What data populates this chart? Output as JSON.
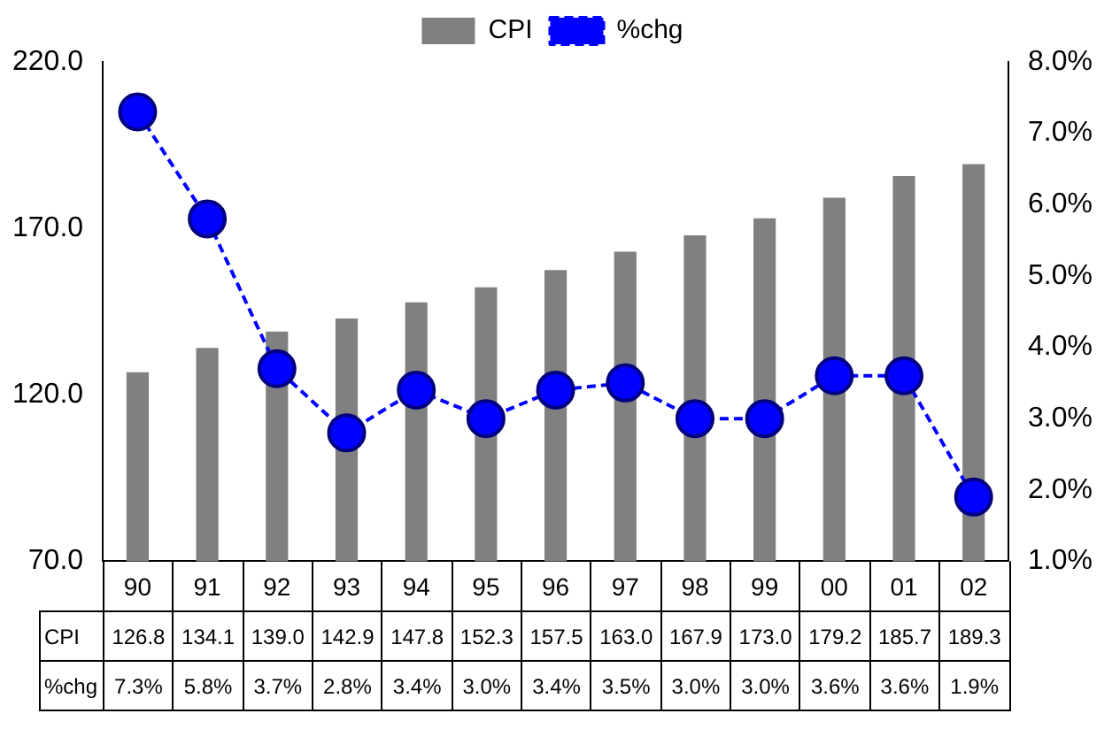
{
  "chart_data": {
    "type": "bar",
    "categories": [
      "90",
      "91",
      "92",
      "93",
      "94",
      "95",
      "96",
      "97",
      "98",
      "99",
      "00",
      "01",
      "02"
    ],
    "series": [
      {
        "name": "CPI",
        "color": "#808080",
        "values": [
          126.8,
          134.1,
          139.0,
          142.9,
          147.8,
          152.3,
          157.5,
          163.0,
          167.9,
          173.0,
          179.2,
          185.7,
          189.3
        ],
        "value_labels": [
          "126.8",
          "134.1",
          "139.0",
          "142.9",
          "147.8",
          "152.3",
          "157.5",
          "163.0",
          "167.9",
          "173.0",
          "179.2",
          "185.7",
          "189.3"
        ]
      },
      {
        "name": "%chg",
        "type": "line",
        "axis": "y2",
        "color": "#0000ff",
        "values": [
          7.3,
          5.8,
          3.7,
          2.8,
          3.4,
          3.0,
          3.4,
          3.5,
          3.0,
          3.0,
          3.6,
          3.6,
          1.9
        ],
        "value_labels": [
          "7.3%",
          "5.8%",
          "3.7%",
          "2.8%",
          "3.4%",
          "3.0%",
          "3.4%",
          "3.5%",
          "3.0%",
          "3.0%",
          "3.6%",
          "3.6%",
          "1.9%"
        ]
      }
    ],
    "ylim": [
      70,
      220
    ],
    "yticks": [
      {
        "value": 70,
        "label": "70.0"
      },
      {
        "value": 120,
        "label": "120.0"
      },
      {
        "value": 170,
        "label": "170.0"
      },
      {
        "value": 220,
        "label": "220.0"
      }
    ],
    "y2lim": [
      1,
      8
    ],
    "y2ticks": [
      {
        "value": 1,
        "label": "1.0%"
      },
      {
        "value": 2,
        "label": "2.0%"
      },
      {
        "value": 3,
        "label": "3.0%"
      },
      {
        "value": 4,
        "label": "4.0%"
      },
      {
        "value": 5,
        "label": "5.0%"
      },
      {
        "value": 6,
        "label": "6.0%"
      },
      {
        "value": 7,
        "label": "7.0%"
      },
      {
        "value": 8,
        "label": "8.0%"
      }
    ],
    "grid": false,
    "legend": "top",
    "marker": "circle",
    "line_style": "dashed"
  }
}
